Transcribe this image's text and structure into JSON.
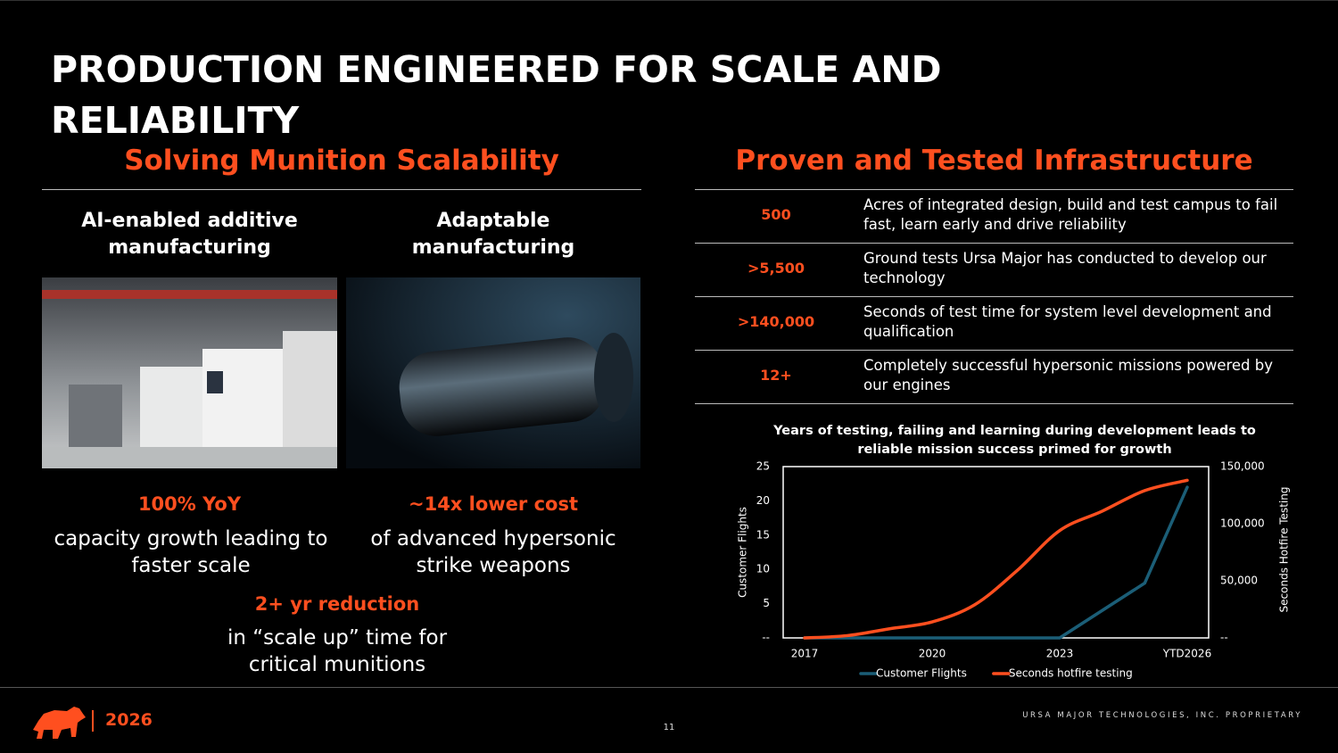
{
  "header": {
    "title": "PRODUCTION ENGINEERED FOR SCALE AND RELIABILITY"
  },
  "left": {
    "heading": "Solving Munition Scalability",
    "columns": [
      {
        "title": "AI-enabled additive manufacturing",
        "stat": "100% YoY",
        "text": "capacity growth leading to faster scale"
      },
      {
        "title": "Adaptable manufacturing",
        "stat": "~14x lower cost",
        "text": "of advanced hypersonic strike weapons"
      }
    ],
    "bottom": {
      "stat": "2+ yr reduction",
      "text": "in “scale up” time for critical munitions"
    }
  },
  "right": {
    "heading": "Proven and Tested Infrastructure",
    "table": {
      "rows": [
        [
          "500",
          "Acres of integrated design, build and test campus to fail fast, learn early and drive reliability"
        ],
        [
          ">5,500",
          "Ground tests Ursa Major has conducted to develop our technology"
        ],
        [
          ">140,000",
          "Seconds of test time for system level development and qualification"
        ],
        [
          "12+",
          "Completely successful hypersonic missions powered by our engines"
        ]
      ]
    }
  },
  "chart_data": {
    "type": "line",
    "title": "Years of testing, failing and learning during development leads to reliable mission success primed for growth",
    "categories": [
      "2017",
      null,
      null,
      "2020",
      null,
      null,
      "2023",
      null,
      null,
      "YTD2026"
    ],
    "series": [
      {
        "name": "Customer Flights",
        "color": "#1b5e77",
        "values": [
          0,
          0,
          0,
          0,
          0,
          0,
          0,
          4,
          8,
          22
        ]
      },
      {
        "name": "Seconds hotfire testing",
        "color": "#ff4f1f",
        "axis": "y2",
        "smooth": true,
        "values": [
          0,
          2000,
          8000,
          14000,
          29000,
          59000,
          94000,
          111000,
          129000,
          138000
        ]
      }
    ],
    "y_label": "Customer Flights",
    "y2_label": "Seconds Hotfire Testing",
    "ylim": [
      0,
      25
    ],
    "yticks": [
      {
        "value": 0,
        "label": "--"
      },
      5,
      10,
      15,
      20,
      25
    ],
    "y2lim": [
      0,
      150000
    ],
    "y2ticks": [
      {
        "value": 0,
        "label": "--"
      },
      {
        "value": 50000,
        "label": "50,000"
      },
      {
        "value": 100000,
        "label": "100,000"
      },
      {
        "value": 150000,
        "label": "150,000"
      }
    ],
    "legend": "bottom",
    "grid": false
  },
  "footer": {
    "year": "2026",
    "page": "11",
    "proprietary": "URSA MAJOR TECHNOLOGIES, INC. PROPRIETARY"
  }
}
